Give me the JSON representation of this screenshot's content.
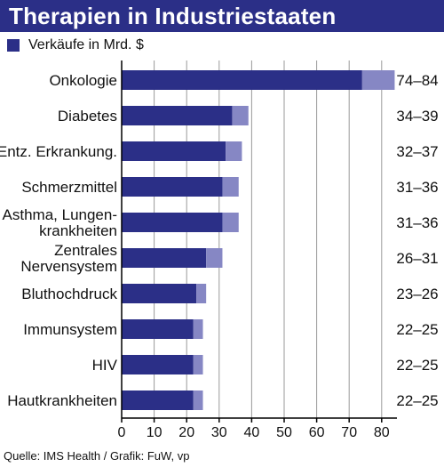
{
  "header": {
    "title": "Therapien in Industriestaaten"
  },
  "source": "Quelle: IMS Health / Grafik: FuW, vp",
  "colors": {
    "title_bg": "#2b2f87",
    "base": "#2b2f87",
    "range": "#8687c4",
    "grid": "#9a9a9a",
    "axis": "#000000"
  },
  "chart_data": {
    "type": "bar",
    "orientation": "horizontal",
    "stacked": true,
    "categories": [
      [
        "Onkologie"
      ],
      [
        "Diabetes"
      ],
      [
        "Entz. Erkrankung."
      ],
      [
        "Schmerzmittel"
      ],
      [
        "Asthma, Lungen-",
        "krankheiten"
      ],
      [
        "Zentrales",
        "Nervensystem"
      ],
      [
        "Bluthochdruck"
      ],
      [
        "Immunsystem"
      ],
      [
        "HIV"
      ],
      [
        "Hautkrankheiten"
      ]
    ],
    "series": [
      {
        "name": "Verkäufe in Mrd. $",
        "values": [
          74,
          34,
          32,
          31,
          31,
          26,
          23,
          22,
          22,
          22
        ]
      },
      {
        "values": [
          10,
          5,
          5,
          5,
          5,
          5,
          3,
          3,
          3,
          3
        ]
      }
    ],
    "range_labels": [
      "74–84",
      "34–39",
      "32–37",
      "31–36",
      "31–36",
      "26–31",
      "23–26",
      "22–25",
      "22–25",
      "22–25"
    ],
    "xticks": [
      0,
      10,
      20,
      30,
      40,
      50,
      60,
      70,
      80
    ],
    "xlim": [
      0,
      85
    ],
    "grid": true,
    "legend": "top-left"
  }
}
